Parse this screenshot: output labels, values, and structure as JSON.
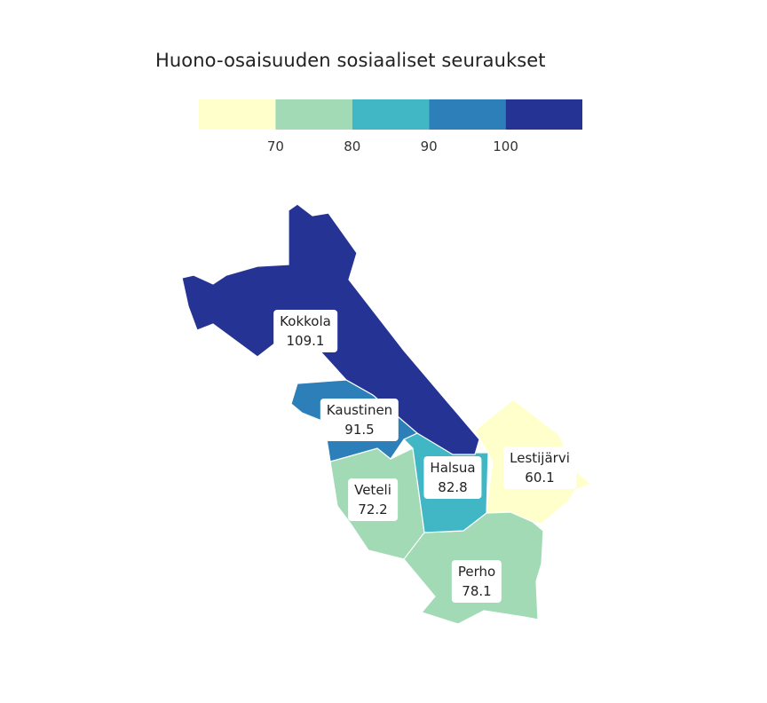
{
  "title": "Huono-osaisuuden sosiaaliset seuraukset",
  "legend": {
    "bins": [
      {
        "color": "#ffffcc"
      },
      {
        "color": "#a1dab4"
      },
      {
        "color": "#41b6c4"
      },
      {
        "color": "#2c7fb8"
      },
      {
        "color": "#253494"
      }
    ],
    "ticks": [
      "70",
      "80",
      "90",
      "100"
    ]
  },
  "regions": [
    {
      "name": "Kokkola",
      "value": "109.1",
      "color": "#253494"
    },
    {
      "name": "Kaustinen",
      "value": "91.5",
      "color": "#2c7fb8"
    },
    {
      "name": "Halsua",
      "value": "82.8",
      "color": "#41b6c4"
    },
    {
      "name": "Lestijärvi",
      "value": "60.1",
      "color": "#ffffcc"
    },
    {
      "name": "Veteli",
      "value": "72.2",
      "color": "#a1dab4"
    },
    {
      "name": "Perho",
      "value": "78.1",
      "color": "#a1dab4"
    }
  ]
}
